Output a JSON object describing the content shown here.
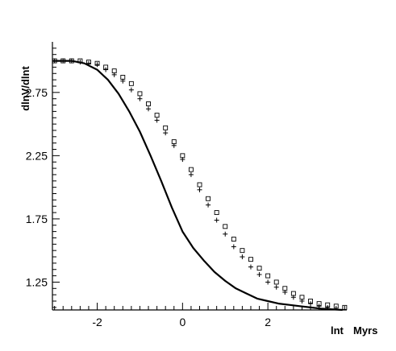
{
  "chart_data": {
    "type": "scatter",
    "title": "",
    "ylabel": "dlnV/dlnt",
    "xlabel": "lnt",
    "xunit": "Myrs",
    "xlim": [
      -3.05,
      3.85
    ],
    "ylim": [
      1.03,
      3.15
    ],
    "xticks": [
      -2,
      0,
      2
    ],
    "yticks": [
      1.25,
      1.75,
      2.25,
      2.75
    ],
    "grid": false,
    "series": [
      {
        "style": "line",
        "color": "#000000",
        "x": [
          -3.05,
          -2.6,
          -2.3,
          -2.0,
          -1.75,
          -1.5,
          -1.25,
          -1.0,
          -0.75,
          -0.5,
          -0.25,
          0.0,
          0.25,
          0.5,
          0.75,
          1.0,
          1.25,
          1.5,
          1.75,
          2.0,
          2.25,
          2.5,
          2.75,
          3.0,
          3.25,
          3.5,
          3.75
        ],
        "y": [
          3.0,
          3.0,
          2.98,
          2.93,
          2.85,
          2.74,
          2.6,
          2.44,
          2.25,
          2.05,
          1.84,
          1.65,
          1.52,
          1.42,
          1.33,
          1.26,
          1.2,
          1.16,
          1.12,
          1.1,
          1.08,
          1.07,
          1.06,
          1.05,
          1.04,
          1.035,
          1.03
        ]
      },
      {
        "style": "square",
        "color": "#000000",
        "x": [
          -3.0,
          -2.8,
          -2.6,
          -2.4,
          -2.2,
          -2.0,
          -1.8,
          -1.6,
          -1.4,
          -1.2,
          -1.0,
          -0.8,
          -0.6,
          -0.4,
          -0.2,
          0.0,
          0.2,
          0.4,
          0.6,
          0.8,
          1.0,
          1.2,
          1.4,
          1.6,
          1.8,
          2.0,
          2.2,
          2.4,
          2.6,
          2.8,
          3.0,
          3.2,
          3.4,
          3.6,
          3.8
        ],
        "y": [
          3.0,
          3.0,
          3.0,
          3.0,
          2.99,
          2.98,
          2.95,
          2.92,
          2.87,
          2.82,
          2.74,
          2.66,
          2.57,
          2.47,
          2.36,
          2.25,
          2.14,
          2.02,
          1.91,
          1.8,
          1.69,
          1.59,
          1.5,
          1.43,
          1.36,
          1.3,
          1.25,
          1.2,
          1.16,
          1.13,
          1.1,
          1.08,
          1.07,
          1.06,
          1.05
        ]
      },
      {
        "style": "plus",
        "color": "#000000",
        "x": [
          -3.0,
          -2.8,
          -2.6,
          -2.4,
          -2.2,
          -2.0,
          -1.8,
          -1.6,
          -1.4,
          -1.2,
          -1.0,
          -0.8,
          -0.6,
          -0.4,
          -0.2,
          0.0,
          0.2,
          0.4,
          0.6,
          0.8,
          1.0,
          1.2,
          1.4,
          1.6,
          1.8,
          2.0,
          2.2,
          2.4,
          2.6,
          2.8,
          3.0,
          3.2,
          3.4
        ],
        "y": [
          3.0,
          3.0,
          3.0,
          2.99,
          2.98,
          2.97,
          2.93,
          2.89,
          2.84,
          2.77,
          2.7,
          2.62,
          2.53,
          2.43,
          2.33,
          2.22,
          2.1,
          1.98,
          1.86,
          1.74,
          1.63,
          1.53,
          1.45,
          1.37,
          1.31,
          1.25,
          1.21,
          1.17,
          1.13,
          1.1,
          1.08,
          1.06,
          1.05
        ]
      }
    ]
  }
}
